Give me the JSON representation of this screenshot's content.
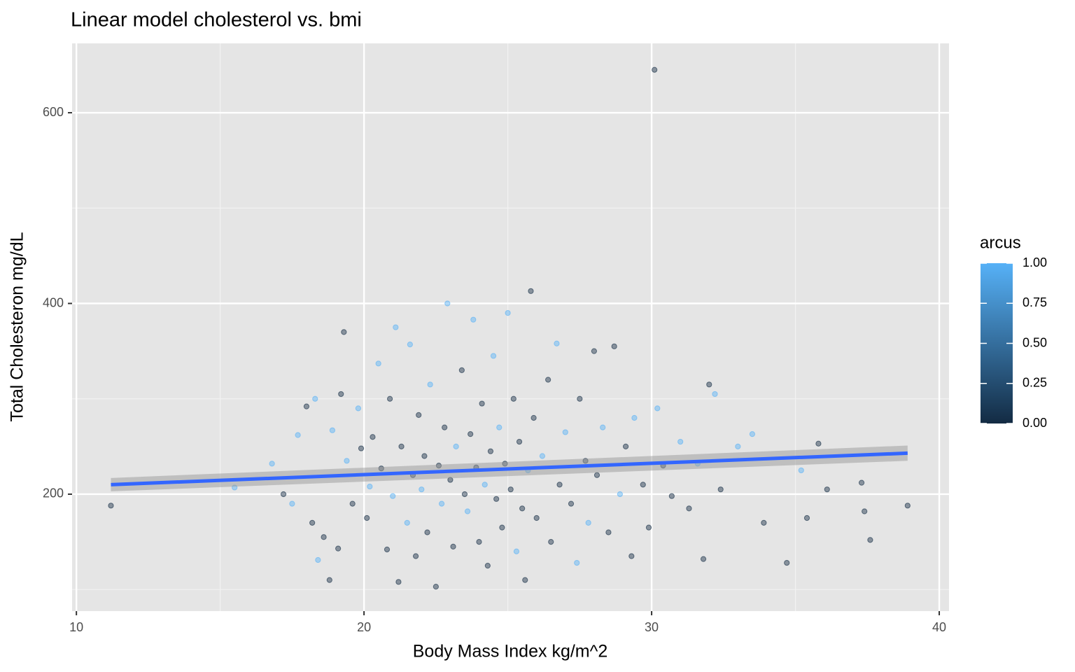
{
  "chart_data": {
    "type": "scatter",
    "title": "Linear model cholesterol vs. bmi",
    "x_label": "Body Mass Index kg/m^2",
    "y_label": "Total Cholesteron mg/dL",
    "xlim": [
      9.85,
      40.34
    ],
    "ylim": [
      77.4,
      672.7
    ],
    "xticks": [
      10,
      20,
      30,
      40
    ],
    "yticks": [
      200,
      400,
      600
    ],
    "x_minor_grid": [
      15,
      25,
      35
    ],
    "y_minor_grid": [
      100,
      300,
      500
    ],
    "grid": true,
    "x": [
      11.2,
      15.5,
      16.8,
      17.2,
      17.5,
      17.7,
      18.0,
      18.2,
      18.3,
      18.4,
      18.6,
      18.8,
      18.9,
      19.1,
      19.2,
      19.3,
      19.4,
      19.6,
      19.8,
      19.9,
      20.1,
      20.2,
      20.3,
      20.5,
      20.6,
      20.8,
      20.9,
      21.0,
      21.1,
      21.2,
      21.3,
      21.5,
      21.6,
      21.7,
      21.8,
      21.9,
      22.0,
      22.1,
      22.2,
      22.3,
      22.5,
      22.6,
      22.7,
      22.8,
      22.9,
      23.0,
      23.1,
      23.2,
      23.4,
      23.5,
      23.6,
      23.7,
      23.8,
      23.9,
      24.0,
      24.1,
      24.2,
      24.3,
      24.4,
      24.5,
      24.6,
      24.7,
      24.8,
      24.9,
      25.0,
      25.1,
      25.2,
      25.3,
      25.4,
      25.5,
      25.6,
      25.7,
      25.8,
      25.9,
      26.0,
      26.2,
      26.4,
      26.5,
      26.7,
      26.8,
      27.0,
      27.2,
      27.4,
      27.5,
      27.7,
      27.8,
      28.0,
      28.1,
      28.3,
      28.5,
      28.7,
      28.9,
      29.1,
      29.3,
      29.4,
      29.7,
      29.9,
      30.1,
      30.2,
      30.4,
      30.7,
      31.0,
      31.3,
      31.6,
      31.8,
      32.0,
      32.2,
      32.4,
      33.0,
      33.5,
      33.9,
      34.7,
      35.2,
      35.4,
      35.8,
      36.1,
      37.3,
      37.4,
      37.6,
      38.9
    ],
    "y": [
      188,
      207,
      232,
      200,
      190,
      262,
      292,
      170,
      300,
      131,
      155,
      110,
      267,
      143,
      305,
      370,
      235,
      190,
      290,
      248,
      175,
      208,
      260,
      337,
      227,
      142,
      300,
      198,
      375,
      108,
      250,
      170,
      357,
      220,
      135,
      283,
      205,
      240,
      160,
      315,
      103,
      230,
      190,
      270,
      400,
      215,
      145,
      250,
      330,
      200,
      182,
      263,
      383,
      228,
      150,
      295,
      210,
      125,
      245,
      345,
      195,
      270,
      165,
      232,
      390,
      205,
      300,
      140,
      255,
      185,
      110,
      225,
      413,
      280,
      175,
      240,
      320,
      150,
      358,
      210,
      265,
      190,
      128,
      300,
      235,
      170,
      350,
      220,
      270,
      160,
      355,
      200,
      250,
      135,
      280,
      210,
      165,
      645,
      290,
      230,
      198,
      255,
      185,
      232,
      132,
      315,
      305,
      205,
      250,
      263,
      170,
      128,
      225,
      175,
      253,
      205,
      212,
      182,
      152,
      188
    ],
    "arcus": [
      0,
      1,
      1,
      0,
      1,
      1,
      0,
      0,
      1,
      1,
      0,
      0,
      1,
      0,
      0,
      0,
      1,
      0,
      1,
      0,
      0,
      1,
      0,
      1,
      0,
      0,
      0,
      1,
      1,
      0,
      0,
      1,
      1,
      0,
      0,
      0,
      1,
      0,
      0,
      1,
      0,
      0,
      1,
      0,
      1,
      0,
      0,
      1,
      0,
      0,
      1,
      0,
      1,
      0,
      0,
      0,
      1,
      0,
      0,
      1,
      0,
      1,
      0,
      0,
      1,
      0,
      0,
      1,
      0,
      0,
      0,
      1,
      0,
      0,
      0,
      1,
      0,
      0,
      1,
      0,
      1,
      0,
      1,
      0,
      0,
      1,
      0,
      0,
      1,
      0,
      0,
      1,
      0,
      0,
      1,
      0,
      0,
      0,
      1,
      0,
      0,
      1,
      0,
      1,
      0,
      0,
      1,
      0,
      1,
      1,
      0,
      0,
      1,
      0,
      0,
      0,
      0,
      0,
      0,
      0
    ],
    "fit": {
      "color": "#3366FF",
      "band_color": "#999999",
      "x": [
        11.2,
        38.9
      ],
      "y": [
        210,
        243
      ],
      "lower": [
        203,
        235
      ],
      "upper": [
        217,
        251
      ]
    },
    "colorbar": {
      "title": "arcus",
      "low_color": "#132B43",
      "high_color": "#56B1F7",
      "lim": [
        0,
        1
      ],
      "ticks": [
        {
          "value": 0,
          "label": "0.00"
        },
        {
          "value": 0.25,
          "label": "0.25"
        },
        {
          "value": 0.5,
          "label": "0.50"
        },
        {
          "value": 0.75,
          "label": "0.75"
        },
        {
          "value": 1,
          "label": "1.00"
        }
      ]
    }
  }
}
